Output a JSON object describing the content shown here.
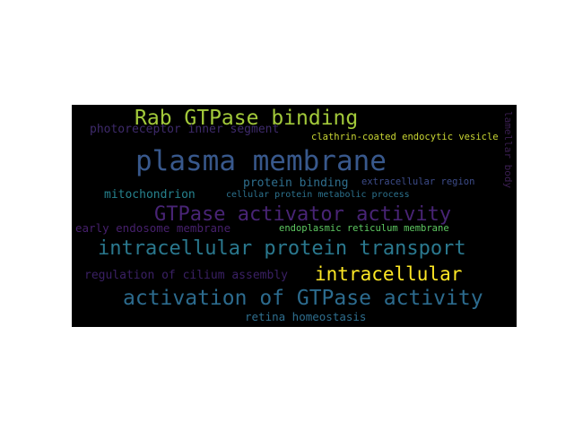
{
  "words": {
    "rab_gtpase_binding": {
      "text": "Rab GTPase binding",
      "color": "#a2c93a"
    },
    "lamellar_body": {
      "text": "lamellar body",
      "color": "#3b1f52"
    },
    "photoreceptor": {
      "text": "photoreceptor inner segment",
      "color": "#3e2a6b"
    },
    "clathrin": {
      "text": "clathrin-coated endocytic vesicle",
      "color": "#c8d533"
    },
    "plasma_membrane": {
      "text": "plasma membrane",
      "color": "#38588c"
    },
    "protein_binding": {
      "text": "protein binding",
      "color": "#2f6f8e"
    },
    "extracellular_region": {
      "text": "extracellular region",
      "color": "#3d4c8a"
    },
    "mitochondrion": {
      "text": "mitochondrion",
      "color": "#26828e"
    },
    "cellular_protein": {
      "text": "cellular protein metabolic process",
      "color": "#2c728e"
    },
    "gtpase_activator": {
      "text": "GTPase activator activity",
      "color": "#482475"
    },
    "early_endosome": {
      "text": "early endosome membrane",
      "color": "#46206c"
    },
    "er_membrane": {
      "text": "endoplasmic reticulum membrane",
      "color": "#5ec962"
    },
    "intracellular_transport": {
      "text": "intracellular protein transport",
      "color": "#2a788e"
    },
    "regulation_cilium": {
      "text": "regulation of cilium assembly",
      "color": "#3a2064"
    },
    "intracellular": {
      "text": "intracellular",
      "color": "#fde725"
    },
    "activation_gtpase": {
      "text": "activation of GTPase activity",
      "color": "#2c6b8e"
    },
    "retina_homeostasis": {
      "text": "retina homeostasis",
      "color": "#2e6e8e"
    }
  }
}
